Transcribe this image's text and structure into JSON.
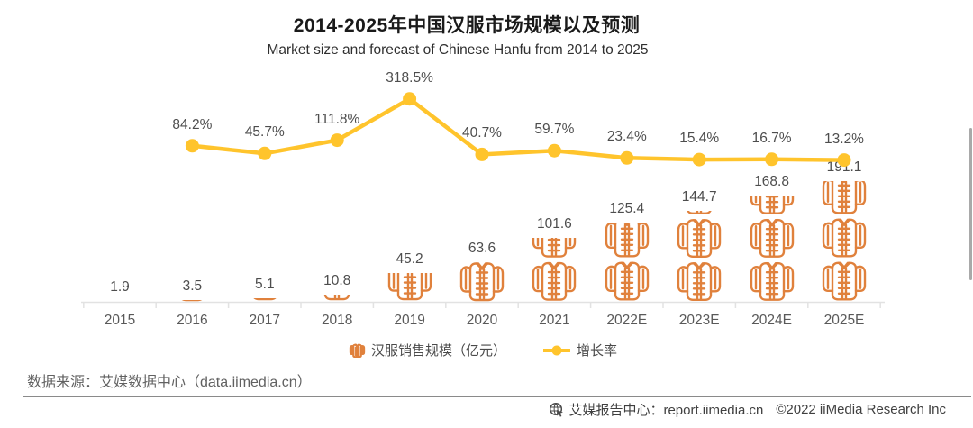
{
  "header": {
    "title": "2014-2025年中国汉服市场规模以及预测",
    "subtitle": "Market size and forecast of Chinese Hanfu from 2014 to 2025"
  },
  "legend": {
    "bar_label": "汉服销售规模（亿元）",
    "line_label": "增长率"
  },
  "footer": {
    "source": "数据来源：艾媒数据中心（data.iimedia.cn）",
    "report_label": "艾媒报告中心：report.iimedia.cn",
    "copyright": "©2022 iiMedia Research Inc"
  },
  "colors": {
    "bar_orange": "#E0813C",
    "line_yellow": "#FFC42C",
    "title_text": "#1a1a1a",
    "value_label_text": "#4d4d4d",
    "axis_line": "#e2e2e2",
    "source_text": "#616161",
    "divider_gray": "#8a8a8a",
    "footer_text": "#3f3f3f",
    "scrollbar_gray": "#a9a9a9"
  },
  "icons": {
    "bar_legend_icon": "hanfu-garment-icon",
    "line_legend_icon": "line-dot-icon",
    "footer_icon": "globe-cursor-icon"
  },
  "chart_data": {
    "type": "bar",
    "subtype": "pictorial-bar-with-line",
    "title": "2014-2025年中国汉服市场规模以及预测",
    "subtitle": "Market size and forecast of Chinese Hanfu from 2014 to 2025",
    "categories": [
      "2015",
      "2016",
      "2017",
      "2018",
      "2019",
      "2020",
      "2021",
      "2022E",
      "2023E",
      "2024E",
      "2025E"
    ],
    "series": [
      {
        "name": "汉服销售规模（亿元）",
        "type": "pictorial-bar",
        "unit": "亿元",
        "symbol": "hanfu-garment-icon",
        "values": [
          1.9,
          3.5,
          5.1,
          10.8,
          45.2,
          63.6,
          101.6,
          125.4,
          144.7,
          168.8,
          191.1
        ]
      },
      {
        "name": "增长率",
        "type": "line",
        "unit": "%",
        "starts_at_category": "2016",
        "start_index": 1,
        "values": [
          84.2,
          45.7,
          111.8,
          318.5,
          40.7,
          59.7,
          23.4,
          15.4,
          16.7,
          13.2
        ]
      }
    ],
    "xlabel": "",
    "ylabel": "",
    "y_axis_visible": false,
    "grid": false,
    "data_labels_visible": true,
    "legend_position": "bottom-center"
  }
}
